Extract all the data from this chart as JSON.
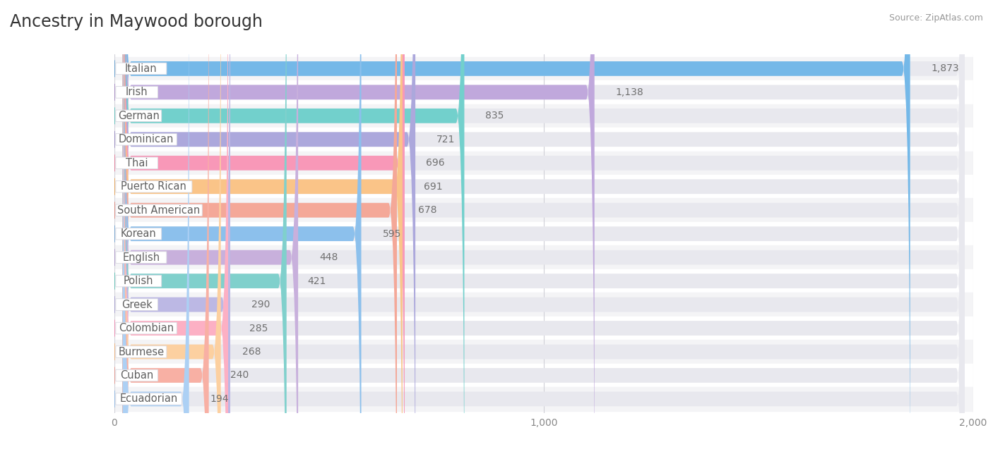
{
  "title": "Ancestry in Maywood borough",
  "source": "Source: ZipAtlas.com",
  "categories": [
    "Italian",
    "Irish",
    "German",
    "Dominican",
    "Thai",
    "Puerto Rican",
    "South American",
    "Korean",
    "English",
    "Polish",
    "Greek",
    "Colombian",
    "Burmese",
    "Cuban",
    "Ecuadorian"
  ],
  "values": [
    1873,
    1138,
    835,
    721,
    696,
    691,
    678,
    595,
    448,
    421,
    290,
    285,
    268,
    240,
    194
  ],
  "bar_colors": [
    "#74b8e8",
    "#c0a8dc",
    "#72d0cc",
    "#aca8dc",
    "#f898b8",
    "#fac488",
    "#f4a898",
    "#8cc0ec",
    "#c8b0dc",
    "#80d0cc",
    "#bcb8e4",
    "#fcb0c4",
    "#fcd0a0",
    "#f8b0a4",
    "#acd0f4"
  ],
  "circle_colors": [
    "#4e94cc",
    "#9c7cbc",
    "#4cbcb4",
    "#8c7cbc",
    "#e46c8c",
    "#e8983c",
    "#dc7c6c",
    "#6098cc",
    "#a48cc4",
    "#4cbcac",
    "#9c94cc",
    "#f07ca8",
    "#f0ac6c",
    "#e48c80",
    "#84b4e4"
  ],
  "row_colors_even": "#f4f4f6",
  "row_colors_odd": "#ffffff",
  "xlim": [
    0,
    2000
  ],
  "xticks": [
    0,
    1000,
    2000
  ],
  "background_color": "#ffffff",
  "bar_bg_color": "#e8e8ee",
  "title_fontsize": 17,
  "label_fontsize": 10.5,
  "value_fontsize": 10,
  "source_fontsize": 9
}
